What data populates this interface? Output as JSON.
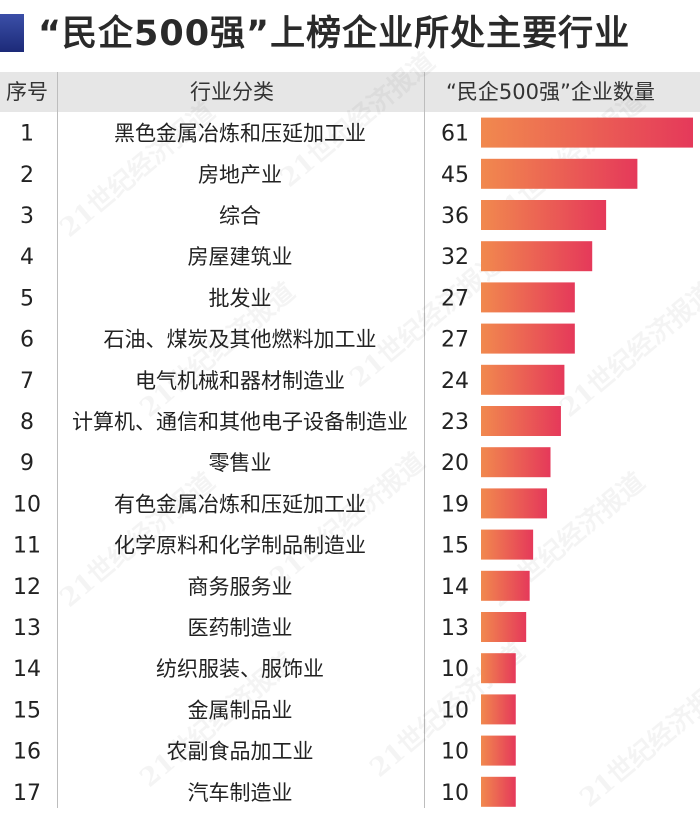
{
  "title": "“民企500强”上榜企业所处主要行业",
  "headers": {
    "rank": "序号",
    "industry": "行业分类",
    "count": "“民企500强”企业数量"
  },
  "watermark": "21世纪经济报道",
  "colors": {
    "bar_start": "#f1894e",
    "bar_end": "#e5395a",
    "accent": "#2a3a8f",
    "header_bg": "#e6e6e6"
  },
  "chart_data": {
    "type": "bar",
    "orientation": "horizontal",
    "title": "“民企500强”上榜企业所处主要行业",
    "ranks": [
      "1",
      "2",
      "3",
      "4",
      "5",
      "6",
      "7",
      "8",
      "9",
      "10",
      "11",
      "12",
      "13",
      "14",
      "15",
      "16",
      "17"
    ],
    "categories": [
      "黑色金属冶炼和压延加工业",
      "房地产业",
      "综合",
      "房屋建筑业",
      "批发业",
      "石油、煤炭及其他燃料加工业",
      "电气机械和器材制造业",
      "计算机、通信和其他电子设备制造业",
      "零售业",
      "有色金属冶炼和压延加工业",
      "化学原料和化学制品制造业",
      "商务服务业",
      "医药制造业",
      "纺织服装、服饰业",
      "金属制品业",
      "农副食品加工业",
      "汽车制造业"
    ],
    "values": [
      61,
      45,
      36,
      32,
      27,
      27,
      24,
      23,
      20,
      19,
      15,
      14,
      13,
      10,
      10,
      10,
      10
    ],
    "xlim": [
      0,
      61
    ],
    "grid": false,
    "legend": "none"
  }
}
